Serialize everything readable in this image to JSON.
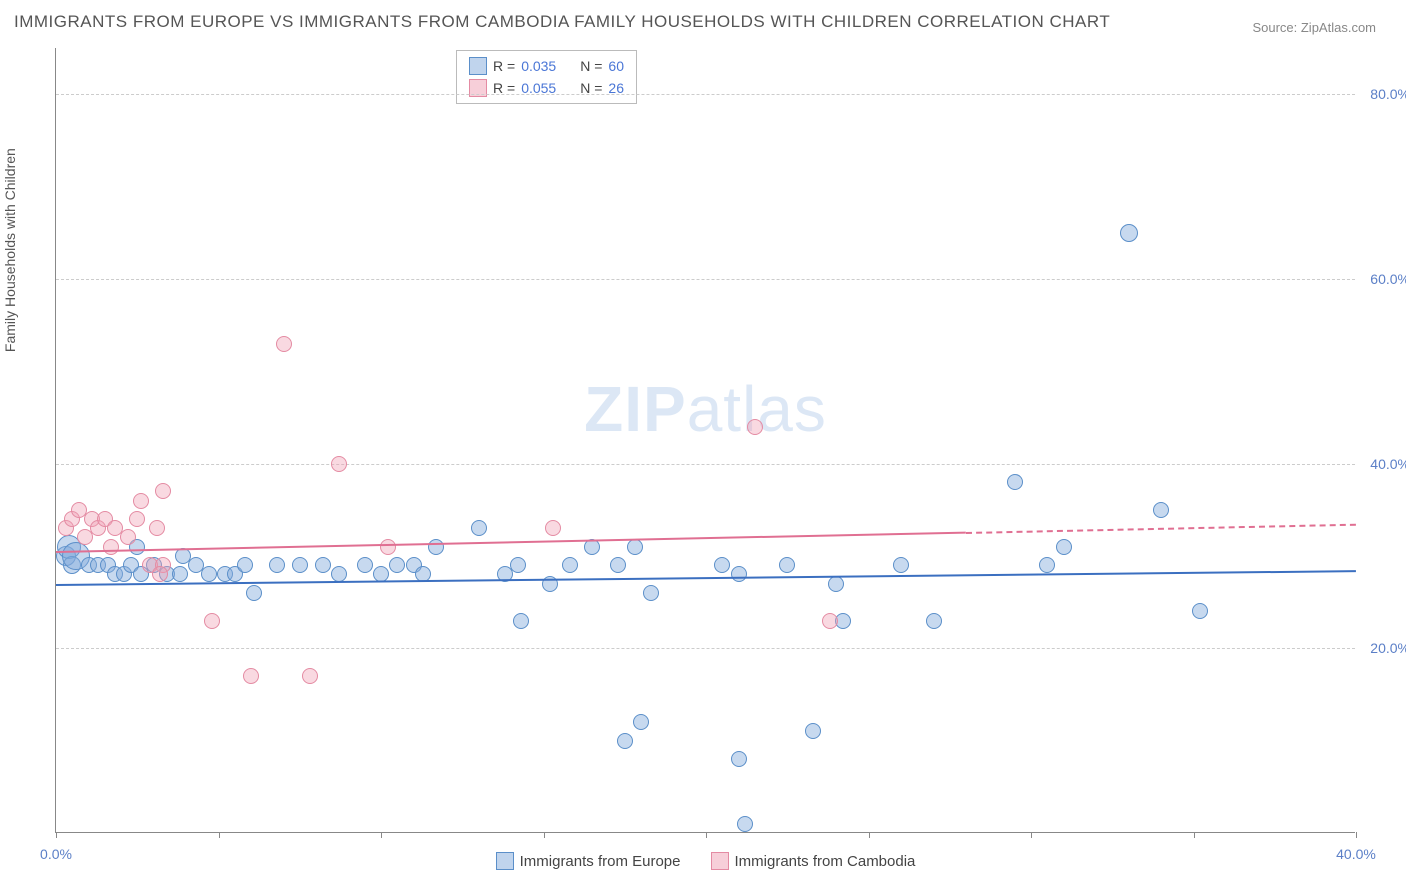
{
  "title": "IMMIGRANTS FROM EUROPE VS IMMIGRANTS FROM CAMBODIA FAMILY HOUSEHOLDS WITH CHILDREN CORRELATION CHART",
  "source": "Source: ZipAtlas.com",
  "y_axis_label": "Family Households with Children",
  "watermark_a": "ZIP",
  "watermark_b": "atlas",
  "chart": {
    "type": "scatter",
    "xlim": [
      0,
      40
    ],
    "ylim": [
      0,
      85
    ],
    "y_ticks": [
      20,
      40,
      60,
      80
    ],
    "y_tick_labels": [
      "20.0%",
      "40.0%",
      "60.0%",
      "80.0%"
    ],
    "x_ticks": [
      0,
      5,
      10,
      15,
      20,
      25,
      30,
      35,
      40
    ],
    "x_tick_labels": [
      "0.0%",
      "",
      "",
      "",
      "",
      "",
      "",
      "",
      "40.0%"
    ],
    "background_color": "#ffffff",
    "grid_color": "#cccccc",
    "axis_color": "#888888",
    "point_radius": 8,
    "series": [
      {
        "name": "Immigrants from Europe",
        "color_fill": "rgba(130,170,220,0.45)",
        "color_stroke": "#5b8fc9",
        "trend_color": "#3b6fc0",
        "R": "0.035",
        "N": "60",
        "trend": {
          "x0": 0,
          "y0": 27.0,
          "x1": 40,
          "y1": 28.5,
          "dash_from_x": null
        },
        "points": [
          {
            "x": 0.3,
            "y": 30,
            "r": 10
          },
          {
            "x": 0.4,
            "y": 31,
            "r": 12
          },
          {
            "x": 0.5,
            "y": 29,
            "r": 9
          },
          {
            "x": 0.6,
            "y": 30,
            "r": 14
          },
          {
            "x": 1.0,
            "y": 29,
            "r": 8
          },
          {
            "x": 1.3,
            "y": 29,
            "r": 8
          },
          {
            "x": 1.6,
            "y": 29,
            "r": 8
          },
          {
            "x": 1.8,
            "y": 28,
            "r": 8
          },
          {
            "x": 2.1,
            "y": 28,
            "r": 8
          },
          {
            "x": 2.3,
            "y": 29,
            "r": 8
          },
          {
            "x": 2.6,
            "y": 28,
            "r": 8
          },
          {
            "x": 2.5,
            "y": 31,
            "r": 8
          },
          {
            "x": 3.0,
            "y": 29,
            "r": 8
          },
          {
            "x": 3.4,
            "y": 28,
            "r": 8
          },
          {
            "x": 3.8,
            "y": 28,
            "r": 8
          },
          {
            "x": 3.9,
            "y": 30,
            "r": 8
          },
          {
            "x": 4.3,
            "y": 29,
            "r": 8
          },
          {
            "x": 4.7,
            "y": 28,
            "r": 8
          },
          {
            "x": 5.2,
            "y": 28,
            "r": 8
          },
          {
            "x": 5.5,
            "y": 28,
            "r": 8
          },
          {
            "x": 5.8,
            "y": 29,
            "r": 8
          },
          {
            "x": 6.1,
            "y": 26,
            "r": 8
          },
          {
            "x": 6.8,
            "y": 29,
            "r": 8
          },
          {
            "x": 7.5,
            "y": 29,
            "r": 8
          },
          {
            "x": 8.2,
            "y": 29,
            "r": 8
          },
          {
            "x": 8.7,
            "y": 28,
            "r": 8
          },
          {
            "x": 9.5,
            "y": 29,
            "r": 8
          },
          {
            "x": 10.0,
            "y": 28,
            "r": 8
          },
          {
            "x": 10.5,
            "y": 29,
            "r": 8
          },
          {
            "x": 11.0,
            "y": 29,
            "r": 8
          },
          {
            "x": 11.3,
            "y": 28,
            "r": 8
          },
          {
            "x": 11.7,
            "y": 31,
            "r": 8
          },
          {
            "x": 13.0,
            "y": 33,
            "r": 8
          },
          {
            "x": 13.8,
            "y": 28,
            "r": 8
          },
          {
            "x": 14.2,
            "y": 29,
            "r": 8
          },
          {
            "x": 14.3,
            "y": 23,
            "r": 8
          },
          {
            "x": 15.2,
            "y": 27,
            "r": 8
          },
          {
            "x": 15.8,
            "y": 29,
            "r": 8
          },
          {
            "x": 16.5,
            "y": 31,
            "r": 8
          },
          {
            "x": 17.3,
            "y": 29,
            "r": 8
          },
          {
            "x": 17.8,
            "y": 31,
            "r": 8
          },
          {
            "x": 18.3,
            "y": 26,
            "r": 8
          },
          {
            "x": 17.5,
            "y": 10,
            "r": 8
          },
          {
            "x": 18.0,
            "y": 12,
            "r": 8
          },
          {
            "x": 20.5,
            "y": 29,
            "r": 8
          },
          {
            "x": 21.0,
            "y": 28,
            "r": 8
          },
          {
            "x": 21.0,
            "y": 8,
            "r": 8
          },
          {
            "x": 21.2,
            "y": 1,
            "r": 8
          },
          {
            "x": 22.5,
            "y": 29,
            "r": 8
          },
          {
            "x": 23.3,
            "y": 11,
            "r": 8
          },
          {
            "x": 24.0,
            "y": 27,
            "r": 8
          },
          {
            "x": 24.2,
            "y": 23,
            "r": 8
          },
          {
            "x": 26.0,
            "y": 29,
            "r": 8
          },
          {
            "x": 27.0,
            "y": 23,
            "r": 8
          },
          {
            "x": 29.5,
            "y": 38,
            "r": 8
          },
          {
            "x": 30.5,
            "y": 29,
            "r": 8
          },
          {
            "x": 31.0,
            "y": 31,
            "r": 8
          },
          {
            "x": 33.0,
            "y": 65,
            "r": 9
          },
          {
            "x": 34.0,
            "y": 35,
            "r": 8
          },
          {
            "x": 35.2,
            "y": 24,
            "r": 8
          }
        ]
      },
      {
        "name": "Immigrants from Cambodia",
        "color_fill": "rgba(240,160,180,0.4)",
        "color_stroke": "#e48ba3",
        "trend_color": "#e06f92",
        "R": "0.055",
        "N": "26",
        "trend": {
          "x0": 0,
          "y0": 30.5,
          "x1": 40,
          "y1": 33.5,
          "dash_from_x": 28
        },
        "points": [
          {
            "x": 0.3,
            "y": 33,
            "r": 8
          },
          {
            "x": 0.5,
            "y": 34,
            "r": 8
          },
          {
            "x": 0.7,
            "y": 35,
            "r": 8
          },
          {
            "x": 0.9,
            "y": 32,
            "r": 8
          },
          {
            "x": 1.1,
            "y": 34,
            "r": 8
          },
          {
            "x": 1.3,
            "y": 33,
            "r": 8
          },
          {
            "x": 1.5,
            "y": 34,
            "r": 8
          },
          {
            "x": 1.7,
            "y": 31,
            "r": 8
          },
          {
            "x": 1.8,
            "y": 33,
            "r": 8
          },
          {
            "x": 2.2,
            "y": 32,
            "r": 8
          },
          {
            "x": 2.5,
            "y": 34,
            "r": 8
          },
          {
            "x": 2.6,
            "y": 36,
            "r": 8
          },
          {
            "x": 2.9,
            "y": 29,
            "r": 8
          },
          {
            "x": 3.1,
            "y": 33,
            "r": 8
          },
          {
            "x": 3.3,
            "y": 29,
            "r": 8
          },
          {
            "x": 3.3,
            "y": 37,
            "r": 8
          },
          {
            "x": 3.2,
            "y": 28,
            "r": 8
          },
          {
            "x": 4.8,
            "y": 23,
            "r": 8
          },
          {
            "x": 6.0,
            "y": 17,
            "r": 8
          },
          {
            "x": 7.0,
            "y": 53,
            "r": 8
          },
          {
            "x": 7.8,
            "y": 17,
            "r": 8
          },
          {
            "x": 8.7,
            "y": 40,
            "r": 8
          },
          {
            "x": 10.2,
            "y": 31,
            "r": 8
          },
          {
            "x": 15.3,
            "y": 33,
            "r": 8
          },
          {
            "x": 21.5,
            "y": 44,
            "r": 8
          },
          {
            "x": 23.8,
            "y": 23,
            "r": 8
          }
        ]
      }
    ]
  },
  "legend_top": {
    "r_label": "R =",
    "n_label": "N ="
  },
  "legend_bottom": [
    {
      "swatch": "blue",
      "label": "Immigrants from Europe"
    },
    {
      "swatch": "pink",
      "label": "Immigrants from Cambodia"
    }
  ]
}
